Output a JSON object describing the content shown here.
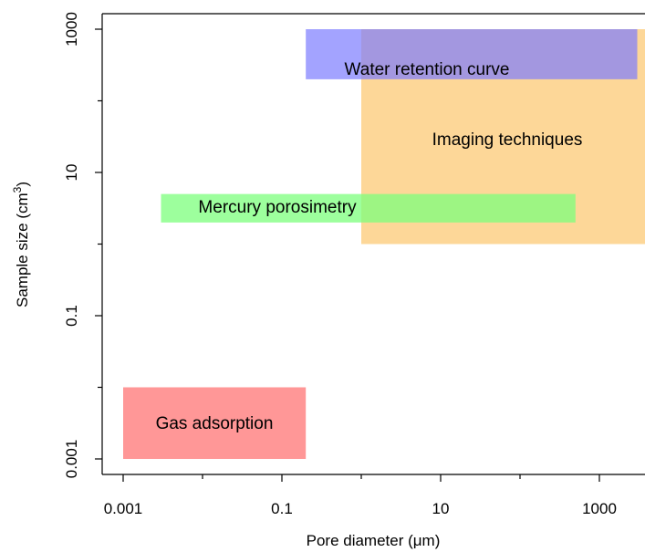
{
  "chart_data": {
    "type": "range-rectangles",
    "x_axis": {
      "label": "Pore diameter (μm)",
      "scale": "log",
      "range": [
        0.001,
        5000
      ],
      "major_ticks": [
        0.001,
        0.1,
        10,
        1000
      ],
      "major_tick_labels": [
        "0.001",
        "0.1",
        "10",
        "1000"
      ],
      "minor_ticks": [
        0.01,
        1,
        100
      ]
    },
    "y_axis": {
      "label_prefix": "Sample size (cm",
      "label_superscript": "3",
      "label_suffix": ")",
      "scale": "log",
      "range": [
        0.001,
        1000
      ],
      "major_ticks": [
        0.001,
        0.1,
        10,
        1000
      ],
      "major_tick_labels": [
        "0.001",
        "0.1",
        "10",
        "1000"
      ],
      "minor_ticks": [
        0.01,
        1,
        100
      ]
    },
    "regions": [
      {
        "label": "Imaging techniques",
        "x_range": [
          1,
          5000
        ],
        "y_range": [
          1,
          1000
        ],
        "color": "#FDD592",
        "opacity": 0.95
      },
      {
        "label": "Water retention curve",
        "x_range": [
          0.2,
          3000
        ],
        "y_range": [
          200,
          1000
        ],
        "color": "#7C7CFF",
        "opacity": 0.7
      },
      {
        "label": "Mercury porosimetry",
        "x_range": [
          0.003,
          500
        ],
        "y_range": [
          2,
          5
        ],
        "color": "#7CFF7C",
        "opacity": 0.75
      },
      {
        "label": "Gas adsorption",
        "x_range": [
          0.001,
          0.2
        ],
        "y_range": [
          0.001,
          0.01
        ],
        "color": "#FF8C8C",
        "opacity": 0.9
      }
    ]
  }
}
